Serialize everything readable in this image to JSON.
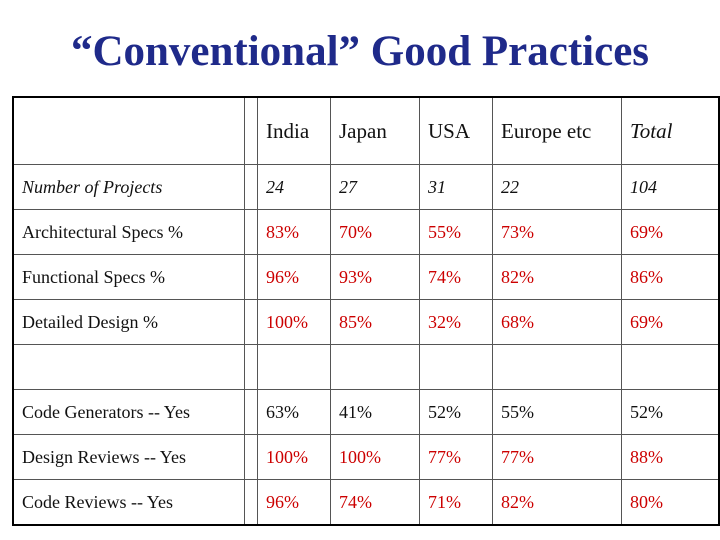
{
  "title": "“Conventional” Good Practices",
  "columns": [
    "India",
    "Japan",
    "USA",
    "Europe etc",
    "Total"
  ],
  "rows": [
    {
      "label": "Number of Projects",
      "values": [
        "24",
        "27",
        "31",
        "22",
        "104"
      ]
    },
    {
      "label": "Architectural Specs %",
      "values": [
        "83%",
        "70%",
        "55%",
        "73%",
        "69%"
      ]
    },
    {
      "label": "Functional Specs %",
      "values": [
        "96%",
        "93%",
        "74%",
        "82%",
        "86%"
      ]
    },
    {
      "label": "Detailed Design %",
      "values": [
        "100%",
        "85%",
        "32%",
        "68%",
        "69%"
      ]
    },
    {
      "label": "Code Generators -- Yes",
      "values": [
        "63%",
        "41%",
        "52%",
        "55%",
        "52%"
      ]
    },
    {
      "label": "Design Reviews -- Yes",
      "values": [
        "100%",
        "100%",
        "77%",
        "77%",
        "88%"
      ]
    },
    {
      "label": "Code Reviews -- Yes",
      "values": [
        "96%",
        "74%",
        "71%",
        "82%",
        "80%"
      ]
    }
  ],
  "colors": {
    "title": "#1f2a8a",
    "highlight": "#cc0000",
    "text": "#111111"
  }
}
